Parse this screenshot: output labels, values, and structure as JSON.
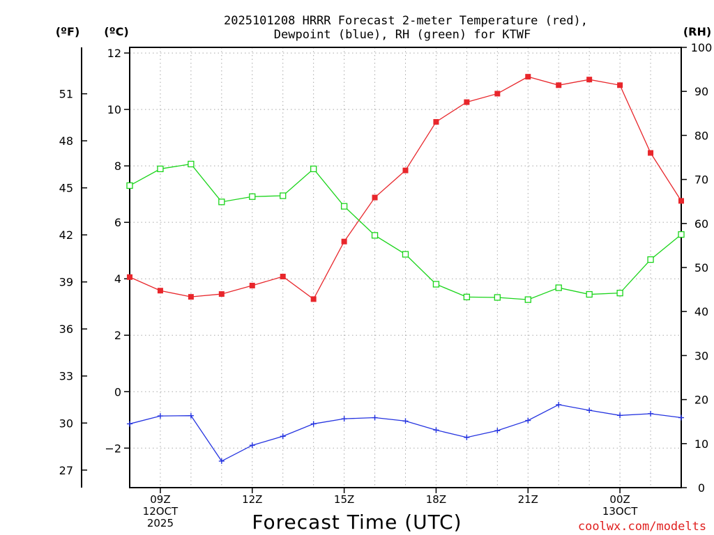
{
  "chart_data": {
    "type": "line",
    "title_line1": "2025101208 HRRR Forecast 2-meter Temperature (red),",
    "title_line2": "Dewpoint (blue), RH (green) for KTWF",
    "xlabel": "Forecast Time (UTC)",
    "credit": "coolwx.com/modelts",
    "unit_f": "(ºF)",
    "unit_c": "(ºC)",
    "unit_rh": "(RH)",
    "x": [
      "08Z",
      "09Z",
      "10Z",
      "11Z",
      "12Z",
      "13Z",
      "14Z",
      "15Z",
      "16Z",
      "17Z",
      "18Z",
      "19Z",
      "20Z",
      "21Z",
      "22Z",
      "23Z",
      "00Z",
      "01Z",
      "02Z"
    ],
    "x_ticks": [
      {
        "index": 1,
        "lines": [
          "09Z",
          "12OCT",
          "2025"
        ]
      },
      {
        "index": 4,
        "lines": [
          "12Z"
        ]
      },
      {
        "index": 7,
        "lines": [
          "15Z"
        ]
      },
      {
        "index": 10,
        "lines": [
          "18Z"
        ]
      },
      {
        "index": 13,
        "lines": [
          "21Z"
        ]
      },
      {
        "index": 16,
        "lines": [
          "00Z",
          "13OCT"
        ]
      }
    ],
    "ylim_c": [
      -3.4,
      12.2
    ],
    "yticks_c": [
      "12",
      "10",
      "8",
      "6",
      "4",
      "2",
      "0",
      "−2"
    ],
    "yticks_c_values": [
      12,
      10,
      8,
      6,
      4,
      2,
      0,
      -2
    ],
    "yticks_f": [
      "51",
      "48",
      "45",
      "42",
      "39",
      "36",
      "33",
      "30",
      "27"
    ],
    "yticks_f_values": [
      51,
      48,
      45,
      42,
      39,
      36,
      33,
      30,
      27
    ],
    "ylim_rh": [
      0,
      100
    ],
    "yticks_rh": [
      "100",
      "90",
      "80",
      "70",
      "60",
      "50",
      "40",
      "30",
      "20",
      "10",
      "0"
    ],
    "yticks_rh_values": [
      100,
      90,
      80,
      70,
      60,
      50,
      40,
      30,
      20,
      10,
      0
    ],
    "series": [
      {
        "name": "Temperature",
        "color": "#e8262b",
        "marker": "filled-square",
        "axis": "celsius",
        "values": [
          4.06,
          3.58,
          3.36,
          3.46,
          3.76,
          4.08,
          3.28,
          5.32,
          6.88,
          7.84,
          9.56,
          10.26,
          10.56,
          11.16,
          10.86,
          11.06,
          10.86,
          8.46,
          6.76
        ]
      },
      {
        "name": "Dewpoint",
        "color": "#2433e0",
        "marker": "plus",
        "axis": "celsius",
        "values": [
          -1.14,
          -0.86,
          -0.85,
          -2.46,
          -1.9,
          -1.58,
          -1.14,
          -0.96,
          -0.92,
          -1.04,
          -1.36,
          -1.62,
          -1.38,
          -1.02,
          -0.46,
          -0.66,
          -0.84,
          -0.78,
          -0.92
        ]
      },
      {
        "name": "RH",
        "color": "#1ad41a",
        "marker": "open-square",
        "axis": "rh",
        "values": [
          68.6,
          72.4,
          73.5,
          64.9,
          66.1,
          66.3,
          72.4,
          63.9,
          57.3,
          53.0,
          46.2,
          43.3,
          43.2,
          42.7,
          45.4,
          43.9,
          44.2,
          51.8,
          57.5
        ]
      }
    ]
  }
}
